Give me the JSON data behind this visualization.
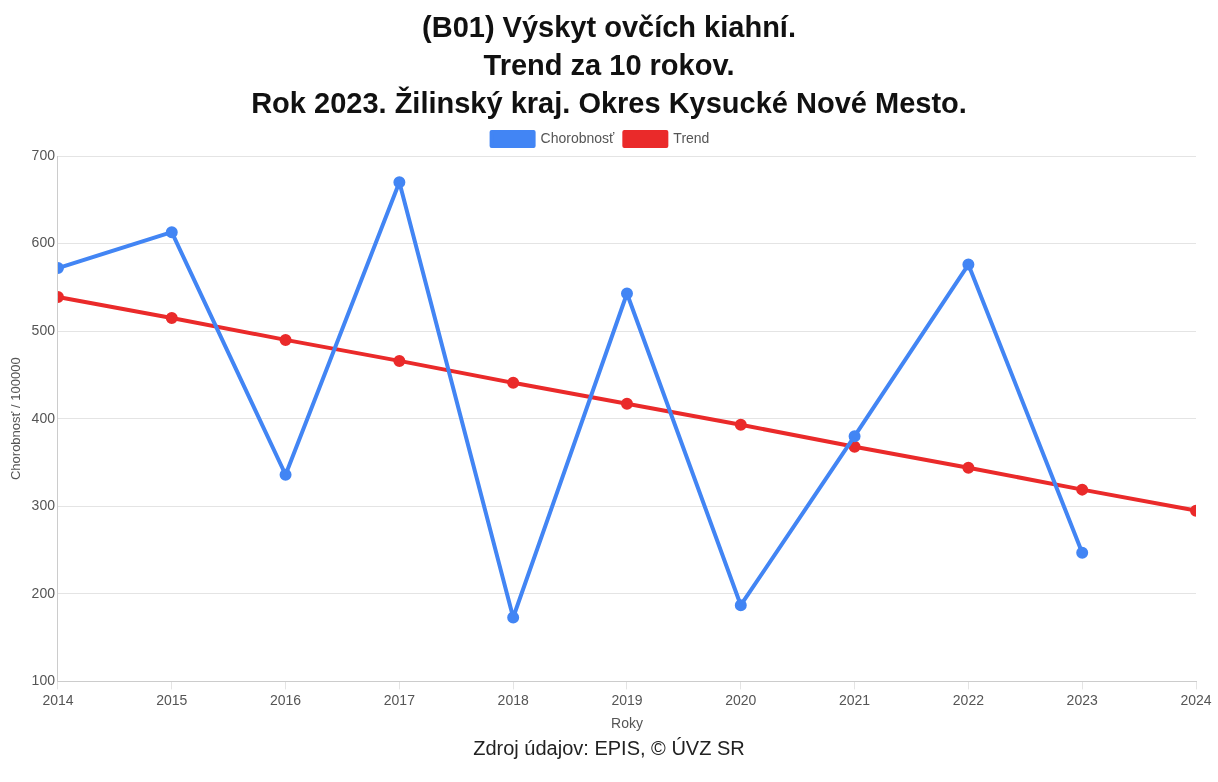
{
  "chart_data": {
    "type": "line",
    "title": "(B01) Výskyt ovčích kiahní.\nTrend za 10 rokov.\nRok 2023. Žilinský kraj. Okres Kysucké Nové Mesto.",
    "xlabel": "Roky",
    "ylabel": "Chorobnosť / 100000",
    "annotations": [
      "Zdroj údajov: EPIS, © ÚVZ SR"
    ],
    "series": [
      {
        "name": "Chorobnosť",
        "color": "#4285f4",
        "x": [
          2014,
          2015,
          2016,
          2017,
          2018,
          2019,
          2020,
          2021,
          2022,
          2023
        ],
        "values": [
          572,
          613,
          336,
          670,
          173,
          543,
          187,
          380,
          576,
          247
        ]
      },
      {
        "name": "Trend",
        "color": "#ea2a2a",
        "x": [
          2014,
          2015,
          2016,
          2017,
          2018,
          2019,
          2020,
          2021,
          2022,
          2023,
          2024
        ],
        "values": [
          539,
          515,
          490,
          466,
          441,
          417,
          393,
          368,
          344,
          319,
          295
        ]
      }
    ],
    "xlim": [
      2014,
      2024
    ],
    "xticks": [
      2014,
      2015,
      2016,
      2017,
      2018,
      2019,
      2020,
      2021,
      2022,
      2023,
      2024
    ],
    "ylim": [
      100,
      700
    ],
    "yticks": [
      100,
      200,
      300,
      400,
      500,
      600,
      700
    ],
    "grid": "y",
    "legend": "top",
    "marker": "circle",
    "line_style": "solid"
  }
}
